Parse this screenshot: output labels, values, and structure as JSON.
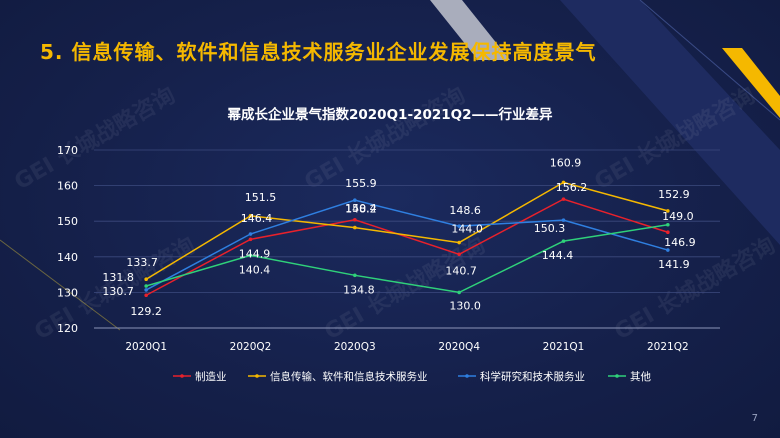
{
  "slide": {
    "heading": "5. 信息传输、软件和信息技术服务业企业发展保持高度景气",
    "page_number": "7",
    "watermark": "GEI 长城战略咨询"
  },
  "colors": {
    "background": "#15204a",
    "heading": "#f5b800",
    "accent_stripe": "#f5b800"
  },
  "chart_data": {
    "type": "line",
    "title": "幂成长企业景气指数2020Q1-2021Q2——行业差异",
    "categories": [
      "2020Q1",
      "2020Q2",
      "2020Q3",
      "2020Q4",
      "2021Q1",
      "2021Q2"
    ],
    "ylim": [
      120,
      170
    ],
    "yticks": [
      120,
      130,
      140,
      150,
      160,
      170
    ],
    "grid": true,
    "legend_position": "bottom",
    "series": [
      {
        "name": "制造业",
        "color": "#e8212b",
        "values": [
          129.2,
          144.9,
          150.4,
          140.7,
          156.2,
          146.9
        ]
      },
      {
        "name": "信息传输、软件和信息技术服务业",
        "color": "#f5b800",
        "values": [
          133.7,
          151.5,
          148.2,
          144.0,
          160.9,
          152.9
        ]
      },
      {
        "name": "科学研究和技术服务业",
        "color": "#2f7fe0",
        "values": [
          130.7,
          146.4,
          155.9,
          148.6,
          150.3,
          141.9
        ]
      },
      {
        "name": "其他",
        "color": "#2fd17a",
        "values": [
          131.8,
          140.4,
          134.8,
          130.0,
          144.4,
          149.0
        ]
      }
    ]
  }
}
